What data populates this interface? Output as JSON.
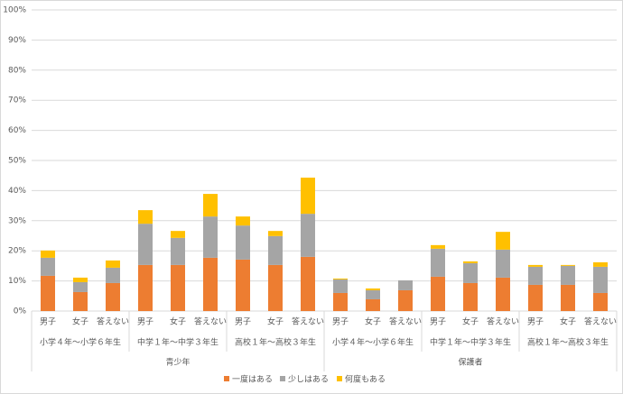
{
  "chart_data": {
    "type": "stacked_bar",
    "category_groups": [
      {
        "name": "青少年",
        "groups": [
          {
            "name": "小学４年～小学６年生",
            "categories": [
              "男子",
              "女子",
              "答えない"
            ]
          },
          {
            "name": "中学１年～中学３年生",
            "categories": [
              "男子",
              "女子",
              "答えない"
            ]
          },
          {
            "name": "高校１年～高校３年生",
            "categories": [
              "男子",
              "女子",
              "答えない"
            ]
          }
        ]
      },
      {
        "name": "保護者",
        "groups": [
          {
            "name": "小学４年～小学６年生",
            "categories": [
              "男子",
              "女子",
              "答えない"
            ]
          },
          {
            "name": "中学１年～中学３年生",
            "categories": [
              "男子",
              "女子",
              "答えない"
            ]
          },
          {
            "name": "高校１年～高校３年生",
            "categories": [
              "男子",
              "女子",
              "答えない"
            ]
          }
        ]
      }
    ],
    "series": [
      {
        "name": "一度はある",
        "color": "#ED7D31",
        "values": [
          11.7,
          6.3,
          9.3,
          15.3,
          15.3,
          17.7,
          17.1,
          15.3,
          18.0,
          6.0,
          3.9,
          6.9,
          11.4,
          9.3,
          11.1,
          8.7,
          8.7,
          6.0
        ]
      },
      {
        "name": "少しはある",
        "color": "#A5A5A5",
        "values": [
          6.0,
          3.3,
          5.1,
          13.7,
          9.0,
          13.7,
          11.3,
          9.6,
          14.3,
          4.5,
          3.0,
          3.3,
          9.3,
          6.6,
          9.3,
          6.0,
          6.3,
          8.7
        ]
      },
      {
        "name": "何度もある",
        "color": "#FFC000",
        "values": [
          2.4,
          1.5,
          2.4,
          4.5,
          2.3,
          7.5,
          3.0,
          1.7,
          12.0,
          0.3,
          0.6,
          0,
          1.2,
          0.6,
          5.9,
          0.6,
          0.3,
          1.5
        ]
      }
    ],
    "ylim": [
      0,
      100
    ],
    "yticks": [
      {
        "value": 0,
        "label": "0%"
      },
      {
        "value": 10,
        "label": "10%"
      },
      {
        "value": 20,
        "label": "20%"
      },
      {
        "value": 30,
        "label": "30%"
      },
      {
        "value": 40,
        "label": "40%"
      },
      {
        "value": 50,
        "label": "50%"
      },
      {
        "value": 60,
        "label": "60%"
      },
      {
        "value": 70,
        "label": "70%"
      },
      {
        "value": 80,
        "label": "80%"
      },
      {
        "value": 90,
        "label": "90%"
      },
      {
        "value": 100,
        "label": "100%"
      }
    ],
    "grid": true,
    "legend": "bottom"
  }
}
